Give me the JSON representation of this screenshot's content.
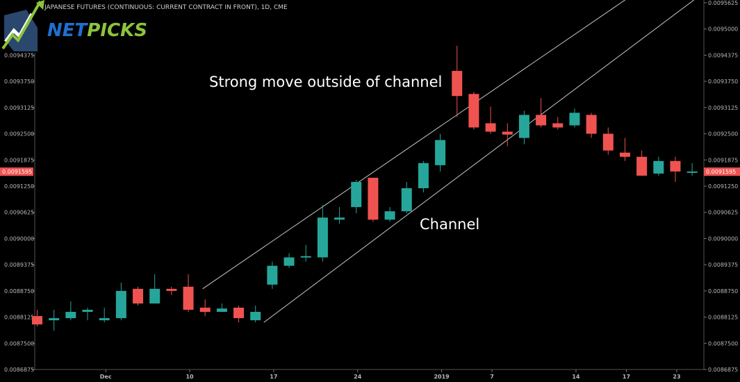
{
  "header": {
    "title": "JAPANESE FUTURES (CONTINUOUS: CURRENT CONTRACT IN FRONT), 1D, CME"
  },
  "logo": {
    "text_part1": "NET",
    "text_part2": "PICKS",
    "color_part1": "#1f6fd0",
    "color_part2": "#8cc43c"
  },
  "annotations": {
    "strong_move": "Strong move outside of channel",
    "channel": "Channel"
  },
  "colors": {
    "up": "#26a69a",
    "down": "#ef5350",
    "background": "#000000",
    "channel_line": "#c8c8c8",
    "price_tag": "#ef5350"
  },
  "chart_data": {
    "type": "candlestick",
    "title": "JAPANESE FUTURES (CONTINUOUS: CURRENT CONTRACT IN FRONT), 1D, CME",
    "ylim": [
      0.00868,
      0.00956
    ],
    "y_ticks": [
      "0.0095625",
      "0.0095000",
      "0.0094375",
      "0.0093750",
      "0.0093125",
      "0.0092500",
      "0.0091875",
      "0.0091250",
      "0.0090625",
      "0.0090000",
      "0.0089375",
      "0.0088750",
      "0.0088125",
      "0.0087500",
      "0.0086875"
    ],
    "y_tick_values": [
      0.0095625,
      0.0095,
      0.0094375,
      0.009375,
      0.0093125,
      0.00925,
      0.0091875,
      0.009125,
      0.0090625,
      0.009,
      0.0089375,
      0.008875,
      0.0088125,
      0.00875,
      0.0086875
    ],
    "x_labels": [
      {
        "index": 4,
        "label": "Dec"
      },
      {
        "index": 9,
        "label": "10"
      },
      {
        "index": 14,
        "label": "17"
      },
      {
        "index": 19,
        "label": "24"
      },
      {
        "index": 24,
        "label": "2019"
      },
      {
        "index": 27,
        "label": "7"
      },
      {
        "index": 32,
        "label": "14"
      },
      {
        "index": 35,
        "label": "17"
      },
      {
        "index": 38,
        "label": "23"
      }
    ],
    "last_price": "0.0091595",
    "last_price_value": 0.0091595,
    "candles": [
      {
        "o": 0.008815,
        "h": 0.00883,
        "l": 0.00879,
        "c": 0.008795
      },
      {
        "o": 0.008805,
        "h": 0.00883,
        "l": 0.00878,
        "c": 0.00881
      },
      {
        "o": 0.00881,
        "h": 0.00885,
        "l": 0.008805,
        "c": 0.008825
      },
      {
        "o": 0.008825,
        "h": 0.008835,
        "l": 0.008805,
        "c": 0.00883
      },
      {
        "o": 0.008805,
        "h": 0.008835,
        "l": 0.0088,
        "c": 0.00881
      },
      {
        "o": 0.00881,
        "h": 0.008895,
        "l": 0.008805,
        "c": 0.008875
      },
      {
        "o": 0.00888,
        "h": 0.008885,
        "l": 0.00884,
        "c": 0.008845
      },
      {
        "o": 0.008845,
        "h": 0.008915,
        "l": 0.008845,
        "c": 0.00888
      },
      {
        "o": 0.00888,
        "h": 0.008885,
        "l": 0.008865,
        "c": 0.008875
      },
      {
        "o": 0.008885,
        "h": 0.008915,
        "l": 0.008825,
        "c": 0.00883
      },
      {
        "o": 0.008835,
        "h": 0.008855,
        "l": 0.008815,
        "c": 0.008825
      },
      {
        "o": 0.008825,
        "h": 0.008845,
        "l": 0.008825,
        "c": 0.008833
      },
      {
        "o": 0.008835,
        "h": 0.00884,
        "l": 0.0088,
        "c": 0.00881
      },
      {
        "o": 0.008805,
        "h": 0.00884,
        "l": 0.0088,
        "c": 0.008825
      },
      {
        "o": 0.00889,
        "h": 0.008945,
        "l": 0.00888,
        "c": 0.008935
      },
      {
        "o": 0.008935,
        "h": 0.008965,
        "l": 0.00893,
        "c": 0.008955
      },
      {
        "o": 0.008955,
        "h": 0.008985,
        "l": 0.008945,
        "c": 0.008958
      },
      {
        "o": 0.008955,
        "h": 0.00908,
        "l": 0.008945,
        "c": 0.00905
      },
      {
        "o": 0.009045,
        "h": 0.009075,
        "l": 0.009035,
        "c": 0.00905
      },
      {
        "o": 0.009075,
        "h": 0.00914,
        "l": 0.00906,
        "c": 0.009135
      },
      {
        "o": 0.009145,
        "h": 0.009145,
        "l": 0.00904,
        "c": 0.009045
      },
      {
        "o": 0.009045,
        "h": 0.009075,
        "l": 0.00904,
        "c": 0.009065
      },
      {
        "o": 0.009065,
        "h": 0.009135,
        "l": 0.00906,
        "c": 0.00912
      },
      {
        "o": 0.00912,
        "h": 0.009185,
        "l": 0.00911,
        "c": 0.00918
      },
      {
        "o": 0.009175,
        "h": 0.00925,
        "l": 0.00916,
        "c": 0.009235
      },
      {
        "o": 0.0094,
        "h": 0.00946,
        "l": 0.00929,
        "c": 0.00934
      },
      {
        "o": 0.009345,
        "h": 0.00935,
        "l": 0.00926,
        "c": 0.009265
      },
      {
        "o": 0.009275,
        "h": 0.009315,
        "l": 0.00925,
        "c": 0.009255
      },
      {
        "o": 0.009255,
        "h": 0.009275,
        "l": 0.00922,
        "c": 0.009248
      },
      {
        "o": 0.00924,
        "h": 0.009305,
        "l": 0.009225,
        "c": 0.009295
      },
      {
        "o": 0.009295,
        "h": 0.009335,
        "l": 0.009265,
        "c": 0.00927
      },
      {
        "o": 0.009275,
        "h": 0.00929,
        "l": 0.00926,
        "c": 0.009265
      },
      {
        "o": 0.00927,
        "h": 0.00931,
        "l": 0.009265,
        "c": 0.0093
      },
      {
        "o": 0.009295,
        "h": 0.0093,
        "l": 0.00924,
        "c": 0.00925
      },
      {
        "o": 0.00925,
        "h": 0.009265,
        "l": 0.0092,
        "c": 0.00921
      },
      {
        "o": 0.009205,
        "h": 0.00924,
        "l": 0.009185,
        "c": 0.009195
      },
      {
        "o": 0.009195,
        "h": 0.00921,
        "l": 0.00915,
        "c": 0.00915
      },
      {
        "o": 0.009155,
        "h": 0.009195,
        "l": 0.00915,
        "c": 0.009185
      },
      {
        "o": 0.009185,
        "h": 0.009195,
        "l": 0.009135,
        "c": 0.00916
      },
      {
        "o": 0.00916,
        "h": 0.00918,
        "l": 0.00915,
        "c": 0.00916
      }
    ],
    "channel_lines": [
      {
        "name": "upper",
        "from": {
          "index": 9.85,
          "value": 0.00888
        },
        "to": {
          "index": 35.4,
          "value": 0.00958
        }
      },
      {
        "name": "lower",
        "from": {
          "index": 13.5,
          "value": 0.0088
        },
        "to": {
          "index": 39.3,
          "value": 0.009575
        }
      }
    ],
    "grid": false
  }
}
